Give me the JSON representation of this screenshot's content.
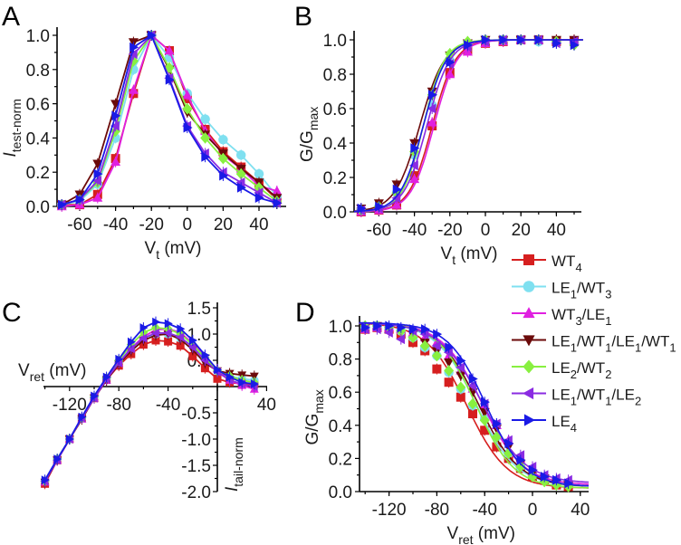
{
  "figure": {
    "legend": [
      {
        "label": "WT",
        "sub": "4",
        "rest": [],
        "color": "#d61f1f",
        "marker": "square"
      },
      {
        "label": "LE",
        "sub": "1",
        "rest": [
          [
            "/WT",
            "3"
          ]
        ],
        "color": "#7fe0f0",
        "marker": "circle"
      },
      {
        "label": "WT",
        "sub": "3",
        "rest": [
          [
            "/LE",
            "1"
          ]
        ],
        "color": "#e020e0",
        "marker": "triangle-up"
      },
      {
        "label": "LE",
        "sub": "1",
        "rest": [
          [
            "/WT",
            "1"
          ],
          [
            "/LE",
            "1"
          ],
          [
            "/WT",
            "1"
          ]
        ],
        "color": "#6b0a0a",
        "marker": "triangle-down"
      },
      {
        "label": "LE",
        "sub": "2",
        "rest": [
          [
            "/WT",
            "2"
          ]
        ],
        "color": "#88f040",
        "marker": "diamond"
      },
      {
        "label": "LE",
        "sub": "1",
        "rest": [
          [
            "/WT",
            "1"
          ],
          [
            "/LE",
            "2"
          ]
        ],
        "color": "#8a2be2",
        "marker": "triangle-left"
      },
      {
        "label": "LE",
        "sub": "4",
        "rest": [],
        "color": "#1a1ae6",
        "marker": "triangle-right"
      }
    ],
    "legend_labels": [
      "WT4",
      "LE1/WT3",
      "WT3/LE1",
      "LE1/WT1/LE1/WT1",
      "LE2/WT2",
      "LE1/WT1/LE2",
      "LE4"
    ]
  },
  "chart_data": [
    {
      "panel": "A",
      "type": "line",
      "title": "",
      "xlabel": "V",
      "xlabel_sub": "t",
      "xlabel_unit": " (mV)",
      "ylabel": "I",
      "ylabel_sub": "test-norm",
      "xlim": [
        -72,
        55
      ],
      "ylim": [
        0,
        1.0
      ],
      "xticks": [
        -60,
        -40,
        -20,
        0,
        20,
        40
      ],
      "yticks": [
        0.0,
        0.2,
        0.4,
        0.6,
        0.8,
        1.0
      ],
      "ytick_labels": [
        "0.0",
        "0.2",
        "0.4",
        "0.6",
        "0.8",
        "1.0"
      ],
      "grid": false,
      "x": [
        -70,
        -60,
        -50,
        -40,
        -30,
        -20,
        -10,
        0,
        10,
        20,
        30,
        40,
        50
      ],
      "series": [
        {
          "name": "WT4",
          "values": [
            0.01,
            0.01,
            0.07,
            0.28,
            0.66,
            1.0,
            0.91,
            0.63,
            0.45,
            0.32,
            0.23,
            0.14,
            0.04
          ]
        },
        {
          "name": "LE1/WT3",
          "values": [
            0.01,
            0.03,
            0.13,
            0.4,
            0.8,
            1.0,
            0.87,
            0.66,
            0.51,
            0.39,
            0.3,
            0.19,
            0.06
          ]
        },
        {
          "name": "WT3/LE1",
          "values": [
            0.0,
            0.01,
            0.05,
            0.26,
            0.68,
            1.0,
            0.91,
            0.65,
            0.44,
            0.3,
            0.22,
            0.12,
            0.09
          ]
        },
        {
          "name": "LE1/WT1/LE1/WT1",
          "values": [
            0.01,
            0.07,
            0.25,
            0.6,
            0.96,
            1.0,
            0.8,
            0.55,
            0.42,
            0.31,
            0.22,
            0.14,
            0.05
          ]
        },
        {
          "name": "LE2/WT2",
          "values": [
            0.01,
            0.04,
            0.14,
            0.44,
            0.85,
            1.0,
            0.81,
            0.57,
            0.4,
            0.28,
            0.19,
            0.11,
            0.03
          ]
        },
        {
          "name": "LE1/WT1/LE2",
          "values": [
            0.01,
            0.04,
            0.15,
            0.47,
            0.89,
            1.0,
            0.75,
            0.47,
            0.31,
            0.2,
            0.14,
            0.08,
            0.02
          ]
        },
        {
          "name": "LE4",
          "values": [
            0.01,
            0.04,
            0.19,
            0.53,
            0.93,
            1.0,
            0.74,
            0.46,
            0.29,
            0.18,
            0.11,
            0.05,
            0.02
          ]
        }
      ]
    },
    {
      "panel": "B",
      "type": "scatter",
      "fit": "boltzmann-rising",
      "title": "",
      "xlabel": "V",
      "xlabel_sub": "t",
      "xlabel_unit": " (mV)",
      "ylabel": "G/G",
      "ylabel_sub": "max",
      "xlim": [
        -74,
        55
      ],
      "ylim": [
        0,
        1.0
      ],
      "xticks": [
        -60,
        -40,
        -20,
        0,
        20,
        40
      ],
      "yticks": [
        0.0,
        0.2,
        0.4,
        0.6,
        0.8,
        1.0
      ],
      "ytick_labels": [
        "0.0",
        "0.2",
        "0.4",
        "0.6",
        "0.8",
        "1.0"
      ],
      "grid": false,
      "x": [
        -70,
        -60,
        -50,
        -40,
        -30,
        -20,
        -10,
        0,
        10,
        20,
        30,
        40,
        50
      ],
      "series": [
        {
          "name": "WT4",
          "v_half": -30,
          "k": 6.5,
          "values": [
            0.0,
            0.01,
            0.04,
            0.21,
            0.5,
            0.81,
            0.94,
            0.98,
            0.99,
            1.0,
            1.0,
            0.99,
            0.99
          ]
        },
        {
          "name": "LE1/WT3",
          "v_half": -35,
          "k": 6.5,
          "values": [
            0.01,
            0.03,
            0.11,
            0.33,
            0.62,
            0.88,
            0.97,
            0.99,
            1.0,
            1.0,
            0.99,
            0.99,
            0.98
          ]
        },
        {
          "name": "WT3/LE1",
          "v_half": -29,
          "k": 6.5,
          "values": [
            0.0,
            0.01,
            0.04,
            0.19,
            0.52,
            0.8,
            0.93,
            0.98,
            0.99,
            1.0,
            1.0,
            1.0,
            1.0
          ]
        },
        {
          "name": "LE1/WT1/LE1/WT1",
          "v_half": -37,
          "k": 7.0,
          "values": [
            0.02,
            0.05,
            0.16,
            0.4,
            0.7,
            0.91,
            0.98,
            1.0,
            1.0,
            1.0,
            1.0,
            1.0,
            1.0
          ]
        },
        {
          "name": "LE2/WT2",
          "v_half": -35,
          "k": 6.0,
          "values": [
            0.01,
            0.03,
            0.11,
            0.35,
            0.68,
            0.92,
            0.99,
            1.0,
            1.0,
            1.0,
            1.0,
            0.99,
            0.97
          ]
        },
        {
          "name": "LE1/WT1/LE2",
          "v_half": -33,
          "k": 6.5,
          "values": [
            0.01,
            0.02,
            0.08,
            0.27,
            0.6,
            0.86,
            0.96,
            0.99,
            1.0,
            1.0,
            1.0,
            0.98,
            0.99
          ]
        },
        {
          "name": "LE4",
          "v_half": -35,
          "k": 6.5,
          "values": [
            0.02,
            0.03,
            0.13,
            0.37,
            0.68,
            0.87,
            0.97,
            1.0,
            1.0,
            1.0,
            1.0,
            0.98,
            0.97
          ]
        }
      ]
    },
    {
      "panel": "C",
      "type": "line",
      "title": "",
      "xlabel": "V",
      "xlabel_sub": "ret",
      "xlabel_unit": " (mV)",
      "ylabel": "I",
      "ylabel_sub": "tail-norm",
      "xlim": [
        -145,
        40
      ],
      "ylim": [
        -2.0,
        1.5
      ],
      "xticks": [
        -120,
        -80,
        -40,
        40
      ],
      "yticks": [
        -2.0,
        -1.5,
        -1.0,
        -0.5,
        0.5,
        1.0,
        1.5
      ],
      "ytick_labels": [
        "-2.0",
        "-1.5",
        "-1.0",
        "-0.5",
        "0.5",
        "1.0",
        "1.5"
      ],
      "grid": false,
      "axes_cross_at_origin": true,
      "x": [
        -140,
        -130,
        -120,
        -110,
        -100,
        -90,
        -80,
        -70,
        -60,
        -50,
        -40,
        -30,
        -20,
        -10,
        0,
        10,
        20,
        30
      ],
      "series": [
        {
          "name": "WT4",
          "values": [
            -1.85,
            -1.4,
            -1.0,
            -0.6,
            -0.22,
            0.13,
            0.4,
            0.62,
            0.8,
            0.88,
            0.86,
            0.78,
            0.58,
            0.35,
            0.15,
            0.08,
            0.05,
            0.05
          ]
        },
        {
          "name": "LE1/WT3",
          "values": [
            -1.8,
            -1.38,
            -1.0,
            -0.6,
            -0.2,
            0.16,
            0.48,
            0.74,
            0.93,
            1.0,
            1.0,
            0.92,
            0.78,
            0.55,
            0.3,
            0.2,
            0.15,
            0.12
          ]
        },
        {
          "name": "WT3/LE1",
          "values": [
            -1.82,
            -1.4,
            -1.0,
            -0.62,
            -0.22,
            0.12,
            0.45,
            0.73,
            0.95,
            1.08,
            1.1,
            1.03,
            0.82,
            0.57,
            0.33,
            0.12,
            0.02,
            -0.05
          ]
        },
        {
          "name": "LE1/WT1/LE1/WT1",
          "values": [
            -1.82,
            -1.4,
            -1.0,
            -0.62,
            -0.22,
            0.12,
            0.43,
            0.68,
            0.88,
            0.98,
            1.0,
            0.9,
            0.7,
            0.45,
            0.3,
            0.25,
            0.22,
            0.2
          ]
        },
        {
          "name": "LE2/WT2",
          "values": [
            -1.8,
            -1.38,
            -1.0,
            -0.6,
            -0.2,
            0.16,
            0.5,
            0.8,
            1.03,
            1.12,
            1.1,
            1.0,
            0.8,
            0.55,
            0.3,
            0.2,
            0.12,
            0.08
          ]
        },
        {
          "name": "LE1/WT1/LE2",
          "values": [
            -1.8,
            -1.4,
            -1.0,
            -0.6,
            -0.22,
            0.14,
            0.45,
            0.72,
            0.92,
            1.02,
            1.02,
            0.94,
            0.75,
            0.5,
            0.28,
            0.12,
            0.05,
            0.0
          ]
        },
        {
          "name": "LE4",
          "values": [
            -1.78,
            -1.38,
            -1.0,
            -0.58,
            -0.18,
            0.18,
            0.52,
            0.85,
            1.12,
            1.23,
            1.2,
            1.1,
            0.88,
            0.6,
            0.32,
            0.18,
            0.08,
            0.05
          ]
        }
      ]
    },
    {
      "panel": "D",
      "type": "scatter",
      "fit": "boltzmann-falling",
      "title": "",
      "xlabel": "V",
      "xlabel_sub": "ret",
      "xlabel_unit": " (mV)",
      "ylabel": "G/G",
      "ylabel_sub": "max",
      "xlim": [
        -145,
        47
      ],
      "ylim": [
        0,
        1.0
      ],
      "xticks": [
        -120,
        -80,
        -40,
        0,
        40
      ],
      "yticks": [
        0.0,
        0.2,
        0.4,
        0.6,
        0.8,
        1.0
      ],
      "ytick_labels": [
        "0.0",
        "0.2",
        "0.4",
        "0.6",
        "0.8",
        "1.0"
      ],
      "grid": false,
      "x": [
        -140,
        -130,
        -120,
        -110,
        -100,
        -90,
        -80,
        -70,
        -60,
        -50,
        -40,
        -30,
        -20,
        -10,
        0,
        10,
        20,
        30
      ],
      "series": [
        {
          "name": "WT4",
          "v_half": -55,
          "k": 17,
          "bottom": 0.02,
          "values": [
            0.98,
            0.99,
            0.98,
            0.95,
            0.9,
            0.85,
            0.74,
            0.66,
            0.57,
            0.47,
            0.37,
            0.27,
            0.2,
            0.14,
            0.09,
            0.07,
            0.04,
            0.03
          ]
        },
        {
          "name": "LE1/WT3",
          "v_half": -47,
          "k": 17,
          "bottom": 0.03,
          "values": [
            0.99,
            1.0,
            0.99,
            0.97,
            0.93,
            0.87,
            0.82,
            0.72,
            0.62,
            0.52,
            0.44,
            0.33,
            0.23,
            0.15,
            0.1,
            0.07,
            0.05,
            0.04
          ]
        },
        {
          "name": "WT3/LE1",
          "v_half": -42,
          "k": 17,
          "bottom": 0.04,
          "values": [
            0.98,
            0.99,
            0.99,
            0.98,
            0.96,
            0.93,
            0.9,
            0.82,
            0.73,
            0.62,
            0.52,
            0.4,
            0.31,
            0.2,
            0.12,
            0.08,
            0.06,
            0.05
          ]
        },
        {
          "name": "LE1/WT1/LE1/WT1",
          "v_half": -45,
          "k": 17,
          "bottom": 0.03,
          "values": [
            0.99,
            1.0,
            0.99,
            0.98,
            0.95,
            0.9,
            0.85,
            0.78,
            0.7,
            0.6,
            0.48,
            0.38,
            0.27,
            0.17,
            0.11,
            0.08,
            0.05,
            0.04
          ]
        },
        {
          "name": "LE2/WT2",
          "v_half": -47,
          "k": 16,
          "bottom": 0.02,
          "values": [
            1.0,
            1.0,
            0.99,
            0.97,
            0.93,
            0.88,
            0.82,
            0.73,
            0.63,
            0.53,
            0.43,
            0.33,
            0.23,
            0.15,
            0.09,
            0.06,
            0.04,
            0.03
          ]
        },
        {
          "name": "LE1/WT1/LE2",
          "v_half": -42,
          "k": 18,
          "bottom": 0.05,
          "values": [
            0.98,
            0.98,
            0.96,
            0.92,
            0.97,
            0.95,
            0.88,
            0.84,
            0.75,
            0.64,
            0.53,
            0.41,
            0.31,
            0.22,
            0.15,
            0.1,
            0.08,
            0.07
          ]
        },
        {
          "name": "LE4",
          "v_half": -39,
          "k": 16,
          "bottom": 0.03,
          "values": [
            0.99,
            1.0,
            1.0,
            0.99,
            0.98,
            0.98,
            0.95,
            0.87,
            0.79,
            0.68,
            0.54,
            0.41,
            0.29,
            0.19,
            0.13,
            0.09,
            0.07,
            0.05
          ]
        }
      ]
    }
  ]
}
